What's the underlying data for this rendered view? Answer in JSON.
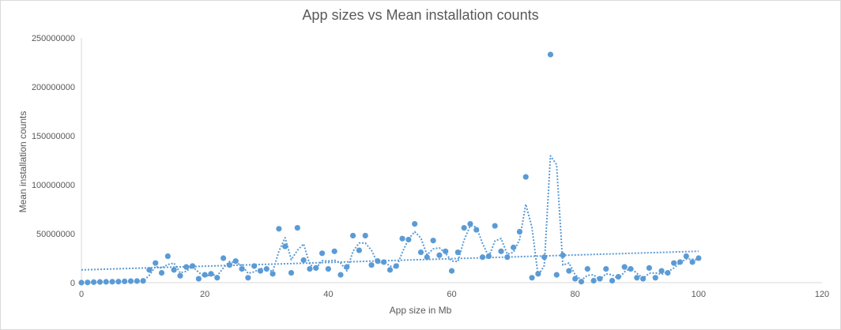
{
  "chart_data": {
    "type": "scatter",
    "title": "App sizes vs Mean installation counts",
    "xlabel": "App size in Mb",
    "ylabel": "Mean installation counts",
    "xlim": [
      0,
      120
    ],
    "ylim": [
      0,
      250000000
    ],
    "x_ticks": [
      "0",
      "20",
      "40",
      "60",
      "80",
      "100",
      "120"
    ],
    "y_ticks": [
      "0",
      "50000000",
      "100000000",
      "150000000",
      "200000000",
      "250000000"
    ],
    "grid": false,
    "legend": "none",
    "marker_color": "#5B9BD5",
    "trendlines": [
      "linear",
      "moving average"
    ],
    "x": [
      0,
      1,
      2,
      3,
      4,
      5,
      6,
      7,
      8,
      9,
      10,
      11,
      12,
      13,
      14,
      15,
      16,
      17,
      18,
      19,
      20,
      21,
      22,
      23,
      24,
      25,
      26,
      27,
      28,
      29,
      30,
      31,
      32,
      33,
      34,
      35,
      36,
      37,
      38,
      39,
      40,
      41,
      42,
      43,
      44,
      45,
      46,
      47,
      48,
      49,
      50,
      51,
      52,
      53,
      54,
      55,
      56,
      57,
      58,
      59,
      60,
      61,
      62,
      63,
      64,
      65,
      66,
      67,
      68,
      69,
      70,
      71,
      72,
      73,
      74,
      75,
      76,
      77,
      78,
      79,
      80,
      81,
      82,
      83,
      84,
      85,
      86,
      87,
      88,
      89,
      90,
      91,
      92,
      93,
      94,
      95,
      96,
      97,
      98,
      99,
      100
    ],
    "y": [
      0,
      200000,
      500000,
      700000,
      800000,
      900000,
      1000000,
      1300000,
      1500000,
      1600000,
      1800000,
      13000000,
      20000000,
      10000000,
      27000000,
      13000000,
      7000000,
      16000000,
      17000000,
      4000000,
      8000000,
      9000000,
      5000000,
      25000000,
      18000000,
      22000000,
      14000000,
      5000000,
      17000000,
      12000000,
      14000000,
      9000000,
      55000000,
      37000000,
      10000000,
      56000000,
      23000000,
      14000000,
      15000000,
      30000000,
      14000000,
      32000000,
      8000000,
      16000000,
      48000000,
      33000000,
      48000000,
      18000000,
      22000000,
      21000000,
      13000000,
      17000000,
      45000000,
      44000000,
      60000000,
      31000000,
      26000000,
      43000000,
      28000000,
      32000000,
      12000000,
      31000000,
      56000000,
      60000000,
      54000000,
      26000000,
      27000000,
      58000000,
      32000000,
      26000000,
      36000000,
      52000000,
      108000000,
      5000000,
      9000000,
      26000000,
      233000000,
      8000000,
      28000000,
      12000000,
      4000000,
      1000000,
      14000000,
      2000000,
      4000000,
      14000000,
      2000000,
      6000000,
      16000000,
      14000000,
      5000000,
      4000000,
      15000000,
      5000000,
      12000000,
      10000000,
      20000000,
      21000000,
      27000000,
      21000000,
      25000000
    ]
  }
}
